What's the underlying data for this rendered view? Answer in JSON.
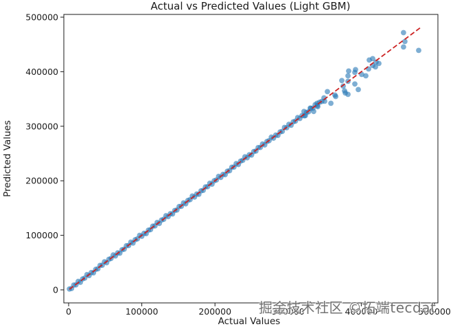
{
  "watermark_text": "掘金技术社区 ©拓端tecdat",
  "chart_data": {
    "type": "scatter",
    "title": "Actual vs Predicted Values (Light GBM)",
    "xlabel": "Actual Values",
    "ylabel": "Predicted Values",
    "xlim": [
      -6600,
      504700
    ],
    "ylim": [
      -23900,
      505000
    ],
    "x_ticks": [
      0,
      100000,
      200000,
      300000,
      400000,
      500000
    ],
    "y_ticks": [
      0,
      100000,
      200000,
      300000,
      400000,
      500000
    ],
    "grid": false,
    "legend": "none",
    "point_color": "#2878b5",
    "point_opacity": 0.6,
    "reference_line": {
      "label": "identity (y = x), red dashed",
      "color": "#cc2222",
      "style": "dashed",
      "x1": 1000,
      "y1": 1000,
      "x2": 481000,
      "y2": 481000
    },
    "points": {
      "x": [
        1000,
        4000,
        7000,
        10000,
        13000,
        16000,
        19000,
        22000,
        25000,
        28000,
        31000,
        34000,
        37000,
        40000,
        43000,
        46000,
        49000,
        52000,
        55000,
        58000,
        61000,
        64000,
        67000,
        70000,
        73000,
        76000,
        79000,
        82000,
        85000,
        88000,
        91000,
        94000,
        97000,
        100000,
        103000,
        106000,
        109000,
        112000,
        115000,
        118000,
        121000,
        124000,
        127000,
        130000,
        133000,
        136000,
        139000,
        142000,
        145000,
        148000,
        151000,
        154000,
        157000,
        160000,
        163000,
        166000,
        169000,
        172000,
        175000,
        178000,
        181000,
        184000,
        187000,
        190000,
        193000,
        196000,
        199000,
        202000,
        205000,
        208000,
        211000,
        214000,
        217000,
        220000,
        223000,
        226000,
        229000,
        232000,
        235000,
        238000,
        241000,
        244000,
        247000,
        250000,
        253000,
        256000,
        259000,
        262000,
        265000,
        268000,
        271000,
        274000,
        277000,
        280000,
        283000,
        286000,
        289000,
        292000,
        295000,
        298000,
        301000,
        304000,
        307000,
        310000,
        313000,
        316000,
        319000,
        322000,
        325000,
        328000,
        331000,
        334000,
        337000,
        340000,
        343000,
        346000,
        349000,
        321700,
        323600,
        330200,
        334900,
        339600,
        340500,
        349900,
        353700,
        358400,
        364000,
        365000,
        373400,
        375200,
        377100,
        378100,
        381800,
        381800,
        381800,
        382700,
        391200,
        391200,
        392100,
        395900,
        400600,
        406200,
        409900,
        410900,
        415600,
        415600,
        419300,
        420300,
        424000,
        457700,
        459600,
        457700,
        478400
      ],
      "y": [
        1500,
        2500,
        8800,
        9200,
        15500,
        13800,
        20000,
        21500,
        28000,
        26200,
        31700,
        31200,
        37500,
        38500,
        44800,
        45200,
        51500,
        49800,
        56000,
        57500,
        64000,
        62200,
        67700,
        67200,
        73500,
        74500,
        80800,
        81200,
        87500,
        85800,
        92000,
        93500,
        100000,
        98200,
        103700,
        103200,
        109500,
        110500,
        116800,
        117200,
        123500,
        121800,
        128000,
        129500,
        136000,
        134200,
        139700,
        139200,
        145500,
        146500,
        152800,
        153200,
        159500,
        157800,
        164000,
        165500,
        172000,
        170200,
        175700,
        175200,
        181500,
        182500,
        188800,
        189200,
        195500,
        193800,
        200000,
        201500,
        208000,
        206200,
        211700,
        211200,
        217500,
        218500,
        224800,
        225200,
        231500,
        229800,
        236000,
        237500,
        244000,
        242200,
        247700,
        247200,
        253500,
        254500,
        260800,
        261200,
        267500,
        265800,
        272000,
        273500,
        280000,
        278200,
        283700,
        283200,
        289500,
        290500,
        297800,
        297200,
        303500,
        301800,
        308000,
        309500,
        316000,
        314200,
        319700,
        319200,
        325500,
        326500,
        332800,
        333200,
        339500,
        337800,
        344000,
        345500,
        352000,
        327100,
        319500,
        333300,
        327100,
        342100,
        335900,
        345900,
        363500,
        342100,
        357200,
        354500,
        383700,
        373600,
        364800,
        361000,
        382400,
        358500,
        392500,
        401300,
        377400,
        398800,
        403800,
        367300,
        395000,
        392500,
        405000,
        421400,
        423900,
        411300,
        408800,
        417600,
        415100,
        471700,
        455400,
        445300,
        439000
      ]
    }
  }
}
